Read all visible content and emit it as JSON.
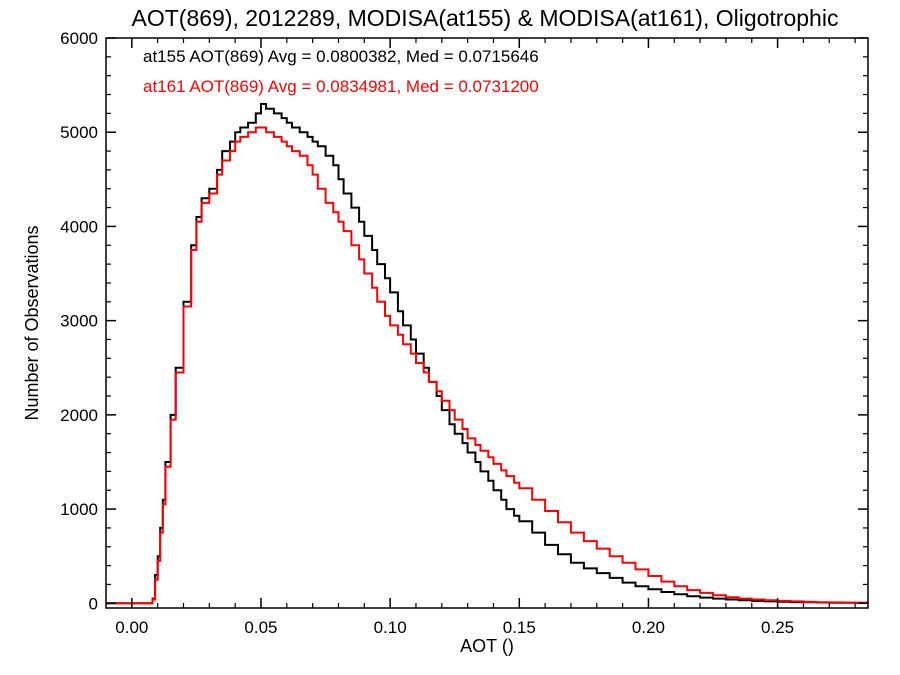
{
  "chart_data": {
    "type": "line",
    "title": "AOT(869), 2012289, MODISA(at155) & MODISA(at161), Oligotrophic",
    "xlabel": "AOT ()",
    "ylabel": "Number of Observations",
    "xlim": [
      -0.01,
      0.285
    ],
    "ylim": [
      -50,
      6000
    ],
    "x_ticks": [
      "0.00",
      "0.05",
      "0.10",
      "0.15",
      "0.20",
      "0.25"
    ],
    "y_ticks": [
      "0",
      "1000",
      "2000",
      "3000",
      "4000",
      "5000",
      "6000"
    ],
    "grid": false,
    "annotations": [
      "at155 AOT(869) Avg = 0.0800382, Med = 0.0715646",
      "at161 AOT(869) Avg = 0.0834981, Med = 0.0731200"
    ],
    "series": [
      {
        "color": "#000000",
        "x": [
          -0.01,
          0.0,
          0.005,
          0.008,
          0.009,
          0.01,
          0.011,
          0.012,
          0.013,
          0.015,
          0.017,
          0.02,
          0.023,
          0.025,
          0.027,
          0.03,
          0.033,
          0.035,
          0.038,
          0.04,
          0.042,
          0.045,
          0.048,
          0.05,
          0.052,
          0.055,
          0.058,
          0.06,
          0.062,
          0.065,
          0.068,
          0.07,
          0.072,
          0.075,
          0.078,
          0.08,
          0.082,
          0.085,
          0.088,
          0.09,
          0.093,
          0.095,
          0.098,
          0.1,
          0.103,
          0.105,
          0.108,
          0.11,
          0.113,
          0.115,
          0.118,
          0.12,
          0.123,
          0.125,
          0.128,
          0.13,
          0.133,
          0.135,
          0.138,
          0.14,
          0.143,
          0.145,
          0.148,
          0.15,
          0.155,
          0.16,
          0.165,
          0.17,
          0.175,
          0.18,
          0.185,
          0.19,
          0.195,
          0.2,
          0.205,
          0.21,
          0.215,
          0.22,
          0.225,
          0.23,
          0.235,
          0.24,
          0.245,
          0.25,
          0.255,
          0.26,
          0.265,
          0.27,
          0.275,
          0.28,
          0.285
        ],
        "y": [
          0,
          0,
          0,
          50,
          300,
          500,
          800,
          1100,
          1500,
          2000,
          2500,
          3200,
          3800,
          4100,
          4300,
          4400,
          4600,
          4800,
          4900,
          5000,
          5050,
          5100,
          5200,
          5300,
          5250,
          5200,
          5150,
          5100,
          5050,
          5000,
          4950,
          4900,
          4850,
          4750,
          4650,
          4500,
          4350,
          4200,
          4050,
          3900,
          3750,
          3600,
          3450,
          3300,
          3100,
          2950,
          2800,
          2650,
          2500,
          2350,
          2200,
          2050,
          1900,
          1800,
          1700,
          1600,
          1500,
          1400,
          1300,
          1200,
          1100,
          1000,
          930,
          870,
          750,
          620,
          520,
          430,
          370,
          320,
          270,
          220,
          180,
          150,
          120,
          95,
          75,
          60,
          50,
          40,
          32,
          25,
          20,
          16,
          13,
          10,
          8,
          6,
          5,
          4,
          3
        ]
      },
      {
        "color": "#ff0000",
        "x": [
          -0.01,
          0.0,
          0.005,
          0.008,
          0.009,
          0.01,
          0.011,
          0.012,
          0.013,
          0.015,
          0.017,
          0.02,
          0.023,
          0.025,
          0.027,
          0.03,
          0.033,
          0.035,
          0.038,
          0.04,
          0.042,
          0.045,
          0.048,
          0.05,
          0.052,
          0.055,
          0.058,
          0.06,
          0.062,
          0.065,
          0.068,
          0.07,
          0.072,
          0.075,
          0.078,
          0.08,
          0.082,
          0.085,
          0.088,
          0.09,
          0.093,
          0.095,
          0.098,
          0.1,
          0.103,
          0.105,
          0.108,
          0.11,
          0.113,
          0.115,
          0.118,
          0.12,
          0.123,
          0.125,
          0.128,
          0.13,
          0.133,
          0.135,
          0.138,
          0.14,
          0.143,
          0.145,
          0.148,
          0.15,
          0.155,
          0.16,
          0.165,
          0.17,
          0.175,
          0.18,
          0.185,
          0.19,
          0.195,
          0.2,
          0.205,
          0.21,
          0.215,
          0.22,
          0.225,
          0.23,
          0.235,
          0.24,
          0.245,
          0.25,
          0.255,
          0.26,
          0.265,
          0.27,
          0.275,
          0.28,
          0.285
        ],
        "y": [
          0,
          0,
          0,
          40,
          250,
          450,
          750,
          1050,
          1450,
          1950,
          2450,
          3150,
          3750,
          4050,
          4250,
          4350,
          4550,
          4700,
          4800,
          4900,
          4950,
          5000,
          5050,
          5050,
          5000,
          4950,
          4900,
          4850,
          4800,
          4750,
          4650,
          4550,
          4400,
          4250,
          4150,
          4050,
          3950,
          3800,
          3650,
          3500,
          3350,
          3200,
          3050,
          2950,
          2850,
          2750,
          2650,
          2550,
          2450,
          2350,
          2250,
          2150,
          2050,
          1950,
          1850,
          1750,
          1680,
          1620,
          1550,
          1480,
          1410,
          1350,
          1280,
          1220,
          1100,
          980,
          860,
          750,
          660,
          580,
          500,
          430,
          360,
          290,
          230,
          180,
          140,
          110,
          85,
          65,
          50,
          40,
          32,
          25,
          20,
          15,
          12,
          9,
          7,
          5,
          3
        ]
      }
    ]
  }
}
